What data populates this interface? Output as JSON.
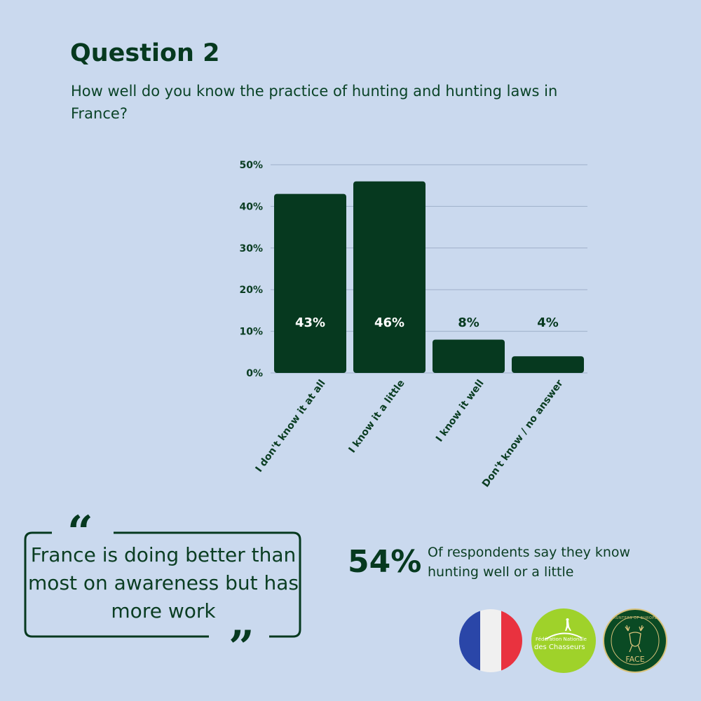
{
  "header": {
    "title": "Question 2",
    "subtitle": "How well do you know the practice of hunting and hunting laws in France?"
  },
  "chart_data": {
    "type": "bar",
    "categories": [
      "I don't know it at all",
      "I know it a little",
      "I know it well",
      "Don't know / no answer"
    ],
    "values": [
      43,
      46,
      8,
      4
    ],
    "data_labels": [
      "43%",
      "46%",
      "8%",
      "4%"
    ],
    "ylim": [
      0,
      50
    ],
    "yticks": [
      0,
      10,
      20,
      30,
      40,
      50
    ],
    "ytick_labels": [
      "0%",
      "10%",
      "20%",
      "30%",
      "40%",
      "50%"
    ],
    "grid": true,
    "bar_color": "#06391f",
    "label_color_inside": "#ffffff",
    "label_color_outside": "#06391f"
  },
  "quote": {
    "text": "France is doing better than most on awareness but has more work",
    "open_mark": "“",
    "close_mark": "”"
  },
  "stat": {
    "number": "54%",
    "text": "Of respondents say they know hunting well or a little"
  },
  "logos": {
    "flag": {
      "name": "france-flag-icon",
      "colors": [
        "#2a46a8",
        "#f0f0f0",
        "#e9323f"
      ]
    },
    "fnc": {
      "line1": "Fédération Nationale",
      "line2": "des Chasseurs",
      "color": "#9fd22a"
    },
    "face": {
      "top_text": "HUNTERS OF EUROPE",
      "bottom_text": "FACE",
      "color": "#0a4a24",
      "accent": "#d8c27a"
    }
  }
}
